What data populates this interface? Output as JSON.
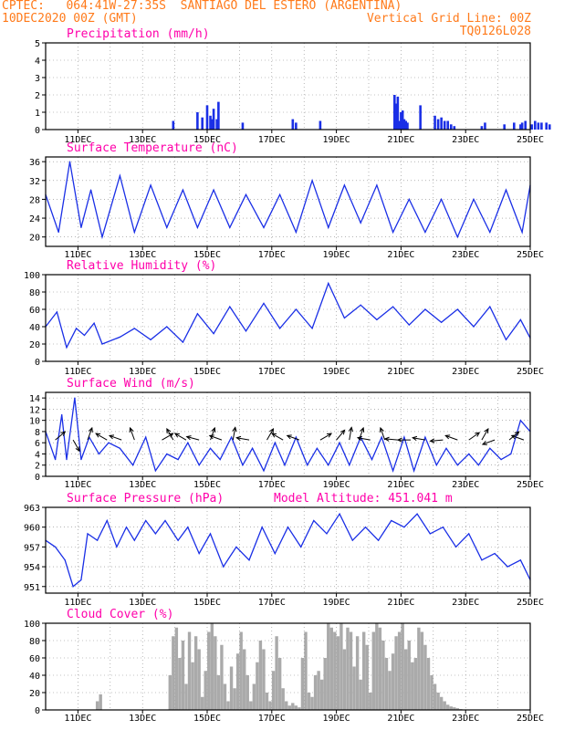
{
  "header": {
    "line1_left": "CPTEC:   064:41W-27:35S  SANTIAGO DEL ESTERO (ARGENTINA)",
    "line2_left": "10DEC2020 00Z (GMT)",
    "line2_right": "Vertical Grid Line: 00Z",
    "line3_right": "TQ0126L028"
  },
  "colors": {
    "header": "#ff7a1a",
    "panel_title": "#ff00aa",
    "series": "#1a2fe6",
    "cloud": "#aaaaaa",
    "grid": "#888888"
  },
  "chart_data": [
    {
      "type": "bar",
      "title": "Precipitation (mm/h)",
      "x_ticks": [
        "11DEC",
        "13DEC",
        "15DEC",
        "17DEC",
        "19DEC",
        "21DEC",
        "23DEC",
        "25DEC"
      ],
      "xlim": [
        0,
        15
      ],
      "ylim": [
        0,
        5
      ],
      "y_ticks": [
        0,
        1,
        2,
        3,
        4,
        5
      ],
      "x": [
        3.95,
        4.7,
        4.85,
        5.0,
        5.1,
        5.15,
        5.2,
        5.3,
        5.35,
        6.1,
        7.65,
        7.75,
        8.5,
        10.8,
        10.85,
        10.9,
        10.95,
        11.0,
        11.05,
        11.1,
        11.15,
        11.2,
        11.6,
        12.05,
        12.15,
        12.25,
        12.35,
        12.45,
        12.55,
        12.65,
        13.5,
        13.6,
        14.2,
        14.5,
        14.7,
        14.75,
        14.85,
        15.05,
        15.15,
        15.25,
        15.35,
        15.5,
        15.6
      ],
      "values": [
        0.5,
        1.0,
        0.7,
        1.4,
        0.8,
        0.6,
        1.2,
        0.6,
        1.6,
        0.4,
        0.6,
        0.4,
        0.5,
        2.0,
        1.5,
        1.9,
        0.5,
        1.0,
        1.1,
        0.6,
        0.5,
        0.4,
        1.4,
        0.8,
        0.6,
        0.7,
        0.5,
        0.5,
        0.3,
        0.2,
        0.2,
        0.4,
        0.3,
        0.4,
        0.3,
        0.4,
        0.5,
        0.3,
        0.5,
        0.4,
        0.4,
        0.4,
        0.3
      ]
    },
    {
      "type": "line",
      "title": "Surface Temperature (nC)",
      "x_ticks": [
        "11DEC",
        "13DEC",
        "15DEC",
        "17DEC",
        "19DEC",
        "21DEC",
        "23DEC",
        "25DEC"
      ],
      "xlim": [
        0,
        15
      ],
      "ylim": [
        18,
        37
      ],
      "y_ticks": [
        20,
        24,
        28,
        32,
        36
      ],
      "x": [
        0,
        0.4,
        0.75,
        1.1,
        1.4,
        1.75,
        2.3,
        2.75,
        3.25,
        3.75,
        4.25,
        4.7,
        5.2,
        5.7,
        6.2,
        6.75,
        7.25,
        7.75,
        8.25,
        8.75,
        9.25,
        9.75,
        10.25,
        10.75,
        11.25,
        11.75,
        12.25,
        12.75,
        13.25,
        13.75,
        14.25,
        14.75,
        15.0
      ],
      "values": [
        29,
        21,
        36,
        22,
        30,
        20,
        33,
        21,
        31,
        22,
        30,
        22,
        30,
        22,
        29,
        22,
        29,
        21,
        32,
        22,
        31,
        23,
        31,
        21,
        28,
        21,
        28,
        20,
        28,
        21,
        30,
        21,
        31
      ]
    },
    {
      "type": "line",
      "title": "Relative Humidity (%)",
      "x_ticks": [
        "11DEC",
        "13DEC",
        "15DEC",
        "17DEC",
        "19DEC",
        "21DEC",
        "23DEC",
        "25DEC"
      ],
      "xlim": [
        0,
        15
      ],
      "ylim": [
        0,
        100
      ],
      "y_ticks": [
        0,
        20,
        40,
        60,
        80,
        100
      ],
      "x": [
        0,
        0.35,
        0.65,
        0.95,
        1.2,
        1.5,
        1.75,
        2.3,
        2.75,
        3.25,
        3.75,
        4.25,
        4.7,
        5.2,
        5.7,
        6.2,
        6.75,
        7.25,
        7.75,
        8.25,
        8.75,
        9.25,
        9.75,
        10.25,
        10.75,
        11.25,
        11.75,
        12.25,
        12.75,
        13.25,
        13.75,
        14.25,
        14.7,
        15.0
      ],
      "values": [
        40,
        57,
        16,
        38,
        30,
        44,
        20,
        28,
        38,
        25,
        40,
        22,
        55,
        32,
        63,
        35,
        67,
        38,
        60,
        38,
        90,
        50,
        65,
        48,
        63,
        42,
        60,
        45,
        60,
        40,
        63,
        25,
        48,
        27
      ]
    },
    {
      "type": "line",
      "title": "Surface Wind (m/s)",
      "x_ticks": [
        "11DEC",
        "13DEC",
        "15DEC",
        "17DEC",
        "19DEC",
        "21DEC",
        "23DEC",
        "25DEC"
      ],
      "xlim": [
        0,
        15
      ],
      "ylim": [
        0,
        15
      ],
      "y_ticks": [
        0,
        2,
        4,
        6,
        8,
        10,
        12,
        14
      ],
      "x": [
        0,
        0.3,
        0.5,
        0.65,
        0.9,
        1.1,
        1.35,
        1.65,
        1.95,
        2.3,
        2.7,
        3.1,
        3.4,
        3.75,
        4.1,
        4.4,
        4.75,
        5.1,
        5.4,
        5.75,
        6.1,
        6.4,
        6.75,
        7.1,
        7.4,
        7.75,
        8.1,
        8.4,
        8.75,
        9.1,
        9.4,
        9.75,
        10.1,
        10.4,
        10.75,
        11.1,
        11.4,
        11.75,
        12.1,
        12.4,
        12.75,
        13.1,
        13.4,
        13.75,
        14.1,
        14.4,
        14.7,
        15.0
      ],
      "values": [
        8,
        3,
        11,
        3,
        14,
        3,
        7,
        4,
        6,
        5,
        2,
        7,
        1,
        4,
        3,
        6,
        2,
        5,
        3,
        7,
        2,
        5,
        1,
        6,
        2,
        7,
        2,
        5,
        2,
        6,
        2,
        7,
        3,
        7,
        1,
        7,
        1,
        7,
        2,
        5,
        2,
        4,
        2,
        5,
        3,
        4,
        10,
        8
      ],
      "arrow_x": [
        0.3,
        0.85,
        1.3,
        1.9,
        2.35,
        2.75,
        3.6,
        3.95,
        4.35,
        4.75,
        5.1,
        5.45,
        5.8,
        6.3,
        6.85,
        7.35,
        7.85,
        8.5,
        9.0,
        9.4,
        9.7,
        10.05,
        10.5,
        10.9,
        11.3,
        11.75,
        12.3,
        12.75,
        13.1,
        13.5,
        13.9,
        14.35,
        14.8
      ]
    },
    {
      "type": "line",
      "title": "Surface Pressure (hPa)",
      "annotation": "Model Altitude: 451.041 m",
      "x_ticks": [
        "11DEC",
        "13DEC",
        "15DEC",
        "17DEC",
        "19DEC",
        "21DEC",
        "23DEC",
        "25DEC"
      ],
      "xlim": [
        0,
        15
      ],
      "ylim": [
        950,
        963
      ],
      "y_ticks": [
        951,
        954,
        957,
        960,
        963
      ],
      "x": [
        0,
        0.3,
        0.6,
        0.85,
        1.1,
        1.3,
        1.6,
        1.9,
        2.2,
        2.5,
        2.75,
        3.1,
        3.4,
        3.7,
        4.1,
        4.4,
        4.75,
        5.1,
        5.5,
        5.9,
        6.3,
        6.7,
        7.1,
        7.5,
        7.9,
        8.3,
        8.7,
        9.1,
        9.5,
        9.9,
        10.3,
        10.7,
        11.1,
        11.5,
        11.9,
        12.3,
        12.7,
        13.1,
        13.5,
        13.9,
        14.3,
        14.7,
        15.0
      ],
      "values": [
        958,
        957,
        955,
        951,
        952,
        959,
        958,
        961,
        957,
        960,
        958,
        961,
        959,
        961,
        958,
        960,
        956,
        959,
        954,
        957,
        955,
        960,
        956,
        960,
        957,
        961,
        959,
        962,
        958,
        960,
        958,
        961,
        960,
        962,
        959,
        960,
        957,
        959,
        955,
        956,
        954,
        955,
        952
      ]
    },
    {
      "type": "bar",
      "title": "Cloud Cover (%)",
      "x_ticks": [
        "11DEC",
        "13DEC",
        "15DEC",
        "17DEC",
        "19DEC",
        "21DEC",
        "23DEC",
        "25DEC"
      ],
      "xlim": [
        0,
        15
      ],
      "ylim": [
        0,
        100
      ],
      "y_ticks": [
        0,
        20,
        40,
        60,
        80,
        100
      ],
      "x": [
        1.6,
        1.7,
        3.85,
        3.95,
        4.05,
        4.15,
        4.25,
        4.35,
        4.45,
        4.55,
        4.65,
        4.75,
        4.85,
        4.95,
        5.05,
        5.15,
        5.25,
        5.35,
        5.45,
        5.55,
        5.65,
        5.75,
        5.85,
        5.95,
        6.05,
        6.15,
        6.25,
        6.35,
        6.45,
        6.55,
        6.65,
        6.75,
        6.85,
        6.95,
        7.05,
        7.15,
        7.25,
        7.35,
        7.45,
        7.55,
        7.65,
        7.75,
        7.85,
        7.95,
        8.05,
        8.15,
        8.25,
        8.35,
        8.45,
        8.55,
        8.65,
        8.75,
        8.85,
        8.95,
        9.05,
        9.15,
        9.25,
        9.35,
        9.45,
        9.55,
        9.65,
        9.75,
        9.85,
        9.95,
        10.05,
        10.15,
        10.25,
        10.35,
        10.45,
        10.55,
        10.65,
        10.75,
        10.85,
        10.95,
        11.05,
        11.15,
        11.25,
        11.35,
        11.45,
        11.55,
        11.65,
        11.75,
        11.85,
        11.95,
        12.05,
        12.15,
        12.25,
        12.35,
        12.45,
        12.55,
        12.65,
        12.75,
        12.85,
        12.95
      ],
      "values": [
        10,
        18,
        40,
        85,
        95,
        60,
        80,
        30,
        90,
        55,
        85,
        70,
        15,
        45,
        90,
        100,
        85,
        40,
        75,
        30,
        10,
        50,
        25,
        65,
        90,
        70,
        40,
        10,
        30,
        55,
        80,
        70,
        20,
        10,
        45,
        85,
        60,
        25,
        10,
        5,
        8,
        5,
        3,
        60,
        90,
        20,
        15,
        40,
        45,
        35,
        60,
        100,
        95,
        90,
        85,
        100,
        70,
        95,
        90,
        50,
        85,
        35,
        90,
        75,
        20,
        90,
        100,
        95,
        80,
        60,
        45,
        65,
        85,
        90,
        100,
        70,
        80,
        55,
        60,
        95,
        90,
        75,
        60,
        40,
        30,
        20,
        15,
        10,
        6,
        4,
        3,
        2,
        1,
        0
      ]
    }
  ]
}
